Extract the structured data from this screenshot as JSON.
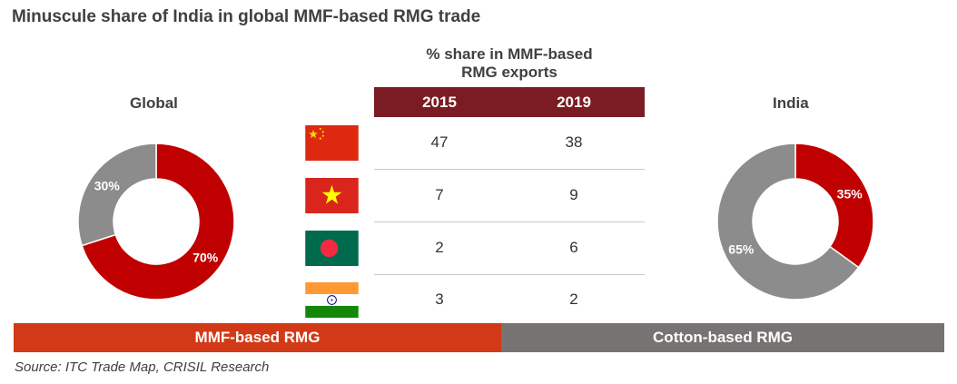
{
  "title": "Minuscule share of India in global MMF-based RMG trade",
  "table": {
    "heading_line1": "% share in MMF-based",
    "heading_line2": "RMG exports",
    "years": [
      "2015",
      "2019"
    ],
    "rows": [
      {
        "flag": "china-flag-icon",
        "v2015": "47",
        "v2019": "38"
      },
      {
        "flag": "vietnam-flag-icon",
        "v2015": "7",
        "v2019": "9"
      },
      {
        "flag": "bangladesh-flag-icon",
        "v2015": "2",
        "v2019": "6"
      },
      {
        "flag": "india-flag-icon",
        "v2015": "3",
        "v2019": "2"
      }
    ]
  },
  "legend": {
    "mmf_label": "MMF-based RMG",
    "cotton_label": "Cotton-based RMG",
    "mmf_color": "#d23a17",
    "cotton_color": "#777373"
  },
  "source": "Source: ITC Trade Map, CRISIL Research",
  "chart_data": [
    {
      "type": "pie",
      "donut": true,
      "title": "Global",
      "categories": [
        "MMF-based RMG",
        "Cotton-based RMG"
      ],
      "values": [
        70,
        30
      ],
      "labels": [
        "70%",
        "30%"
      ],
      "colors": [
        "#c00000",
        "#8c8c8c"
      ]
    },
    {
      "type": "pie",
      "donut": true,
      "title": "India",
      "categories": [
        "MMF-based RMG",
        "Cotton-based RMG"
      ],
      "values": [
        35,
        65
      ],
      "labels": [
        "35%",
        "65%"
      ],
      "colors": [
        "#c00000",
        "#8c8c8c"
      ]
    },
    {
      "type": "table",
      "title": "% share in MMF-based RMG exports",
      "columns": [
        "2015",
        "2019"
      ],
      "rows": [
        "China",
        "Vietnam",
        "Bangladesh",
        "India"
      ],
      "values": [
        [
          47,
          38
        ],
        [
          7,
          9
        ],
        [
          2,
          6
        ],
        [
          3,
          2
        ]
      ]
    }
  ]
}
